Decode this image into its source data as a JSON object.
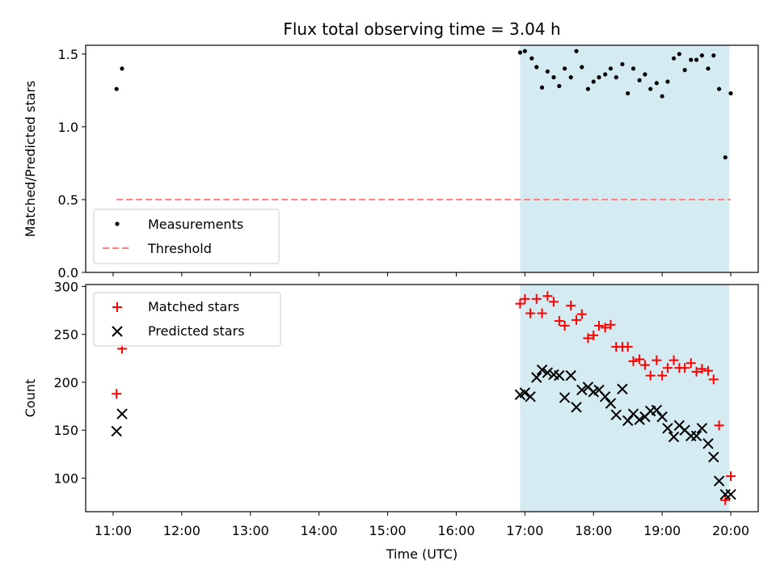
{
  "chart_data": [
    {
      "type": "scatter",
      "title": "Flux total observing time = 3.04 h",
      "xlabel": "",
      "ylabel": "Matched/Predicted stars",
      "x_unit": "hours UTC",
      "xlim": [
        10.6,
        20.4
      ],
      "ylim": [
        0.0,
        1.56
      ],
      "yticks": [
        0.0,
        0.5,
        1.0,
        1.5
      ],
      "ytick_labels": [
        "0.0",
        "0.5",
        "1.0",
        "1.5"
      ],
      "xticks": [
        11,
        12,
        13,
        14,
        15,
        16,
        17,
        18,
        19,
        20
      ],
      "xtick_labels": [],
      "shaded_interval": {
        "x0": 16.93,
        "x1": 19.98,
        "color": "#d4ebf1"
      },
      "threshold": {
        "name": "Threshold",
        "value": 0.5,
        "x0": 11.05,
        "x1": 20.0,
        "color": "#ff7f7f",
        "style": "dashed"
      },
      "legend": {
        "placement": "lower-left",
        "entries": [
          "Measurements",
          "Threshold"
        ]
      },
      "series": [
        {
          "name": "Measurements",
          "marker": "dot",
          "color": "#000000",
          "x": [
            11.05,
            11.13,
            16.93,
            17.0,
            17.1,
            17.17,
            17.25,
            17.33,
            17.42,
            17.5,
            17.58,
            17.67,
            17.75,
            17.83,
            17.92,
            18.0,
            18.08,
            18.17,
            18.25,
            18.33,
            18.42,
            18.5,
            18.58,
            18.67,
            18.75,
            18.83,
            18.92,
            19.0,
            19.08,
            19.17,
            19.25,
            19.33,
            19.42,
            19.5,
            19.58,
            19.67,
            19.75,
            19.83,
            19.92,
            20.0
          ],
          "y": [
            1.26,
            1.4,
            1.51,
            1.52,
            1.47,
            1.41,
            1.27,
            1.38,
            1.34,
            1.28,
            1.4,
            1.34,
            1.52,
            1.41,
            1.26,
            1.31,
            1.34,
            1.36,
            1.4,
            1.34,
            1.43,
            1.23,
            1.4,
            1.32,
            1.36,
            1.26,
            1.3,
            1.21,
            1.31,
            1.47,
            1.5,
            1.39,
            1.46,
            1.46,
            1.49,
            1.4,
            1.49,
            1.26,
            0.79,
            1.23
          ]
        }
      ]
    },
    {
      "type": "scatter",
      "title": "",
      "xlabel": "Time (UTC)",
      "ylabel": "Count",
      "x_unit": "hours UTC",
      "xlim": [
        10.6,
        20.4
      ],
      "ylim": [
        65,
        302
      ],
      "yticks": [
        100,
        150,
        200,
        250,
        300
      ],
      "ytick_labels": [
        "100",
        "150",
        "200",
        "250",
        "300"
      ],
      "xticks": [
        11,
        12,
        13,
        14,
        15,
        16,
        17,
        18,
        19,
        20
      ],
      "xtick_labels": [
        "11:00",
        "12:00",
        "13:00",
        "14:00",
        "15:00",
        "16:00",
        "17:00",
        "18:00",
        "19:00",
        "20:00"
      ],
      "shaded_interval": {
        "x0": 16.93,
        "x1": 19.98,
        "color": "#d4ebf1"
      },
      "legend": {
        "placement": "upper-left",
        "entries": [
          "Matched stars",
          "Predicted stars"
        ]
      },
      "series": [
        {
          "name": "Matched stars",
          "marker": "plus",
          "color": "#ff0000",
          "x": [
            11.05,
            11.13,
            16.93,
            17.0,
            17.08,
            17.17,
            17.25,
            17.33,
            17.42,
            17.5,
            17.58,
            17.67,
            17.75,
            17.83,
            17.92,
            18.0,
            18.08,
            18.17,
            18.25,
            18.33,
            18.42,
            18.5,
            18.58,
            18.67,
            18.75,
            18.83,
            18.92,
            19.0,
            19.08,
            19.17,
            19.25,
            19.33,
            19.42,
            19.5,
            19.58,
            19.67,
            19.75,
            19.83,
            19.92,
            20.0
          ],
          "y": [
            188,
            235,
            282,
            287,
            272,
            287,
            272,
            290,
            284,
            264,
            259,
            280,
            265,
            271,
            246,
            249,
            259,
            257,
            260,
            237,
            237,
            237,
            222,
            224,
            218,
            207,
            223,
            207,
            215,
            223,
            215,
            215,
            220,
            211,
            214,
            212,
            203,
            155,
            77,
            102
          ]
        },
        {
          "name": "Predicted stars",
          "marker": "x",
          "color": "#000000",
          "x": [
            11.05,
            11.13,
            16.93,
            17.0,
            17.08,
            17.17,
            17.25,
            17.33,
            17.42,
            17.5,
            17.58,
            17.67,
            17.75,
            17.83,
            17.92,
            18.0,
            18.08,
            18.17,
            18.25,
            18.33,
            18.42,
            18.5,
            18.58,
            18.67,
            18.75,
            18.83,
            18.92,
            19.0,
            19.08,
            19.17,
            19.25,
            19.33,
            19.42,
            19.5,
            19.58,
            19.67,
            19.75,
            19.83,
            19.92,
            20.0
          ],
          "y": [
            149,
            167,
            187,
            189,
            185,
            205,
            213,
            210,
            208,
            207,
            184,
            207,
            174,
            192,
            195,
            190,
            192,
            185,
            178,
            166,
            193,
            160,
            167,
            161,
            164,
            170,
            171,
            164,
            152,
            143,
            155,
            150,
            144,
            144,
            152,
            136,
            122,
            97,
            83,
            83
          ]
        }
      ]
    }
  ]
}
